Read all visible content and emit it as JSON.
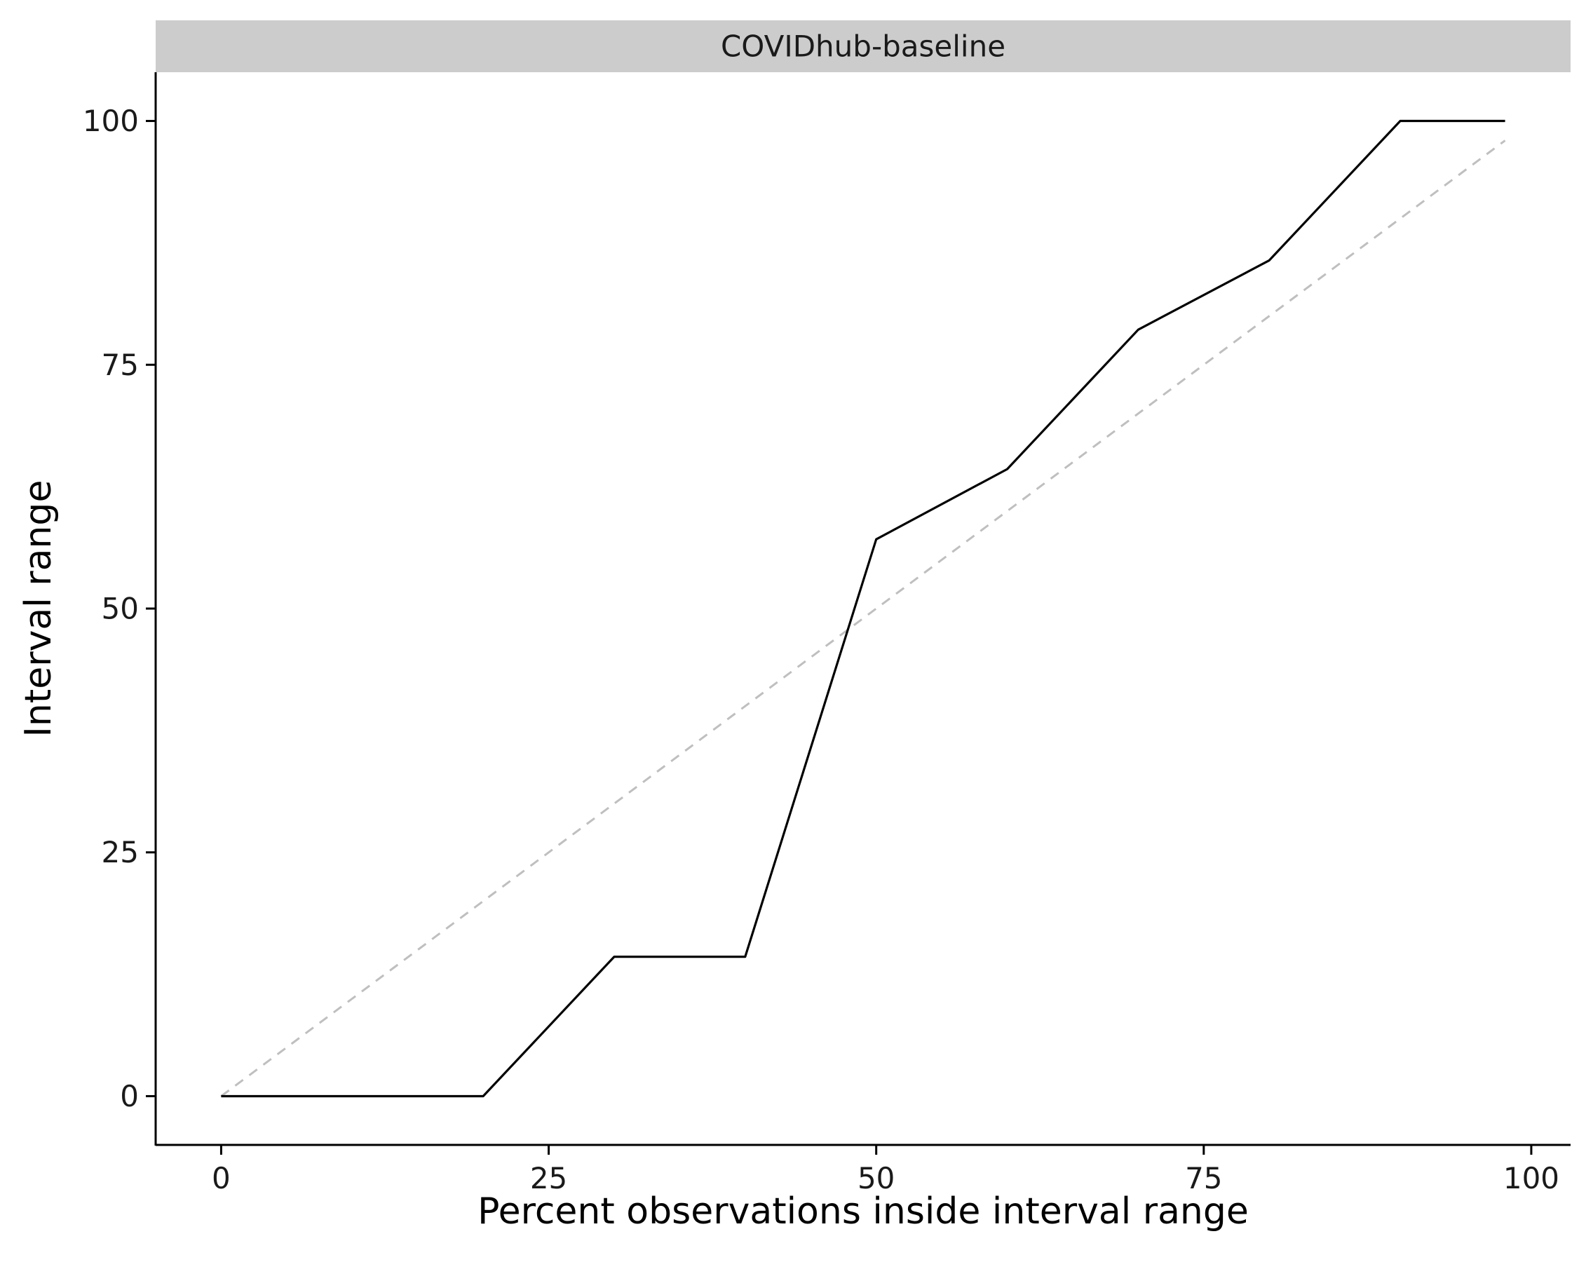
{
  "chart_data": {
    "type": "line",
    "panel_label": "COVIDhub-baseline",
    "title": "",
    "xlabel": "Percent observations inside interval range",
    "ylabel": "Interval range",
    "xlim": [
      -5,
      103
    ],
    "ylim": [
      -5,
      105
    ],
    "x_ticks": [
      0,
      25,
      50,
      75,
      100
    ],
    "y_ticks": [
      0,
      25,
      50,
      75,
      100
    ],
    "grid": false,
    "series": [
      {
        "x": [
          0,
          10,
          20,
          30,
          40,
          50,
          60,
          70,
          80,
          90,
          98
        ],
        "y": [
          0,
          0,
          0,
          14.3,
          14.3,
          57.1,
          64.3,
          78.6,
          85.7,
          100,
          100
        ],
        "color": "#000000",
        "style": "solid"
      },
      {
        "x": [
          0,
          98
        ],
        "y": [
          0,
          98
        ],
        "color": "#bfbfbf",
        "style": "dashed"
      }
    ],
    "colors": {
      "strip_background": "#cccccc",
      "axis": "#000000"
    }
  }
}
